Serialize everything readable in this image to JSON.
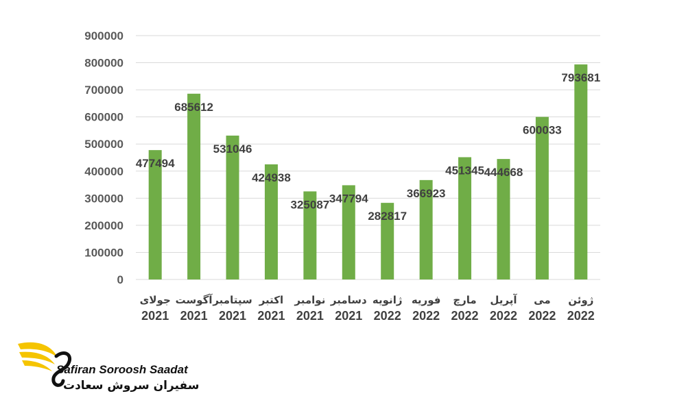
{
  "chart_data": {
    "type": "bar",
    "title": "",
    "xlabel": "",
    "ylabel": "",
    "ylim": [
      0,
      900000
    ],
    "yticks": [
      0,
      100000,
      200000,
      300000,
      400000,
      500000,
      600000,
      700000,
      800000,
      900000
    ],
    "grid": true,
    "legend": "none",
    "bar_color": "#70ad47",
    "categories": [
      {
        "month": "جولای",
        "year": "2021"
      },
      {
        "month": "آگوست",
        "year": "2021"
      },
      {
        "month": "سپتامبر",
        "year": "2021"
      },
      {
        "month": "اکتبر",
        "year": "2021"
      },
      {
        "month": "نوامبر",
        "year": "2021"
      },
      {
        "month": "دسامبر",
        "year": "2021"
      },
      {
        "month": "ژانویه",
        "year": "2022"
      },
      {
        "month": "فوریه",
        "year": "2022"
      },
      {
        "month": "مارچ",
        "year": "2022"
      },
      {
        "month": "آپریل",
        "year": "2022"
      },
      {
        "month": "می",
        "year": "2022"
      },
      {
        "month": "ژوئن",
        "year": "2022"
      }
    ],
    "values": [
      477494,
      685612,
      531046,
      424938,
      325087,
      347794,
      282817,
      366923,
      451345,
      444668,
      600033,
      793681
    ]
  },
  "brand": {
    "name_en": "Safiran Soroosh Saadat",
    "name_fa": "سفیران سروش سعادت",
    "accent_color": "#f5c400"
  }
}
